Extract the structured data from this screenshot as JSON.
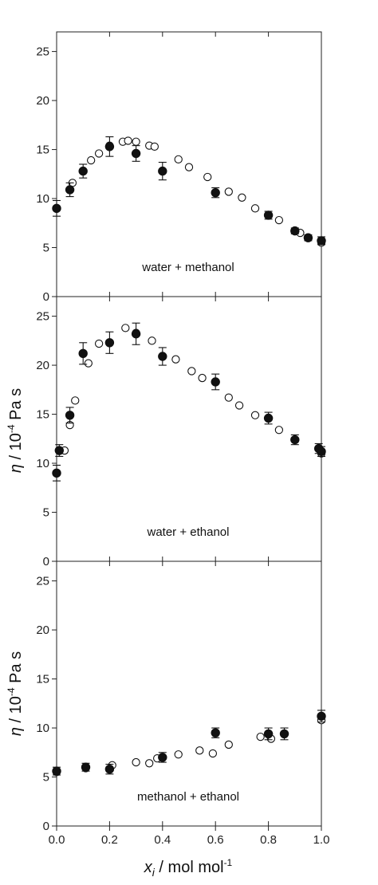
{
  "chart_data": [
    {
      "type": "scatter",
      "annotation": "water + methanol",
      "xlim": [
        0,
        1
      ],
      "ylim": [
        0,
        27
      ],
      "x_ticks": [
        "0.0",
        "0.2",
        "0.4",
        "0.6",
        "0.8",
        "1.0"
      ],
      "y_ticks": [
        "0",
        "5",
        "10",
        "15",
        "20",
        "25"
      ],
      "ylabel": "",
      "series": [
        {
          "marker": "filled-circle",
          "error_bars": true,
          "points": [
            {
              "x": 0.0,
              "y": 9.0,
              "err": 0.8
            },
            {
              "x": 0.05,
              "y": 10.9,
              "err": 0.7
            },
            {
              "x": 0.1,
              "y": 12.8,
              "err": 0.7
            },
            {
              "x": 0.2,
              "y": 15.3,
              "err": 1.0
            },
            {
              "x": 0.3,
              "y": 14.6,
              "err": 0.8
            },
            {
              "x": 0.4,
              "y": 12.8,
              "err": 0.9
            },
            {
              "x": 0.6,
              "y": 10.6,
              "err": 0.5
            },
            {
              "x": 0.8,
              "y": 8.3,
              "err": 0.4
            },
            {
              "x": 0.9,
              "y": 6.7,
              "err": 0.3
            },
            {
              "x": 0.95,
              "y": 6.0,
              "err": 0.3
            },
            {
              "x": 1.0,
              "y": 5.7,
              "err": 0.4
            }
          ]
        },
        {
          "marker": "open-circle",
          "error_bars": false,
          "points": [
            {
              "x": 0.0,
              "y": 9.0
            },
            {
              "x": 0.06,
              "y": 11.6
            },
            {
              "x": 0.1,
              "y": 12.8
            },
            {
              "x": 0.13,
              "y": 13.9
            },
            {
              "x": 0.16,
              "y": 14.6
            },
            {
              "x": 0.2,
              "y": 15.4
            },
            {
              "x": 0.25,
              "y": 15.8
            },
            {
              "x": 0.27,
              "y": 15.9
            },
            {
              "x": 0.3,
              "y": 15.8
            },
            {
              "x": 0.35,
              "y": 15.4
            },
            {
              "x": 0.37,
              "y": 15.3
            },
            {
              "x": 0.46,
              "y": 14.0
            },
            {
              "x": 0.5,
              "y": 13.2
            },
            {
              "x": 0.57,
              "y": 12.2
            },
            {
              "x": 0.65,
              "y": 10.7
            },
            {
              "x": 0.7,
              "y": 10.1
            },
            {
              "x": 0.75,
              "y": 9.0
            },
            {
              "x": 0.84,
              "y": 7.8
            },
            {
              "x": 0.9,
              "y": 6.7
            },
            {
              "x": 0.92,
              "y": 6.5
            },
            {
              "x": 1.0,
              "y": 5.5
            }
          ]
        }
      ]
    },
    {
      "type": "scatter",
      "annotation": "water + ethanol",
      "xlim": [
        0,
        1
      ],
      "ylim": [
        0,
        27
      ],
      "x_ticks": [
        "0.0",
        "0.2",
        "0.4",
        "0.6",
        "0.8",
        "1.0"
      ],
      "y_ticks": [
        "0",
        "5",
        "10",
        "15",
        "20",
        "25"
      ],
      "ylabel": "η / 10⁻⁴ Pa s",
      "series": [
        {
          "marker": "filled-circle",
          "error_bars": true,
          "points": [
            {
              "x": 0.0,
              "y": 9.0,
              "err": 0.8
            },
            {
              "x": 0.01,
              "y": 11.3,
              "err": 0.6
            },
            {
              "x": 0.05,
              "y": 14.9,
              "err": 0.8
            },
            {
              "x": 0.1,
              "y": 21.2,
              "err": 1.1
            },
            {
              "x": 0.2,
              "y": 22.3,
              "err": 1.1
            },
            {
              "x": 0.3,
              "y": 23.2,
              "err": 1.1
            },
            {
              "x": 0.4,
              "y": 20.9,
              "err": 0.9
            },
            {
              "x": 0.6,
              "y": 18.3,
              "err": 0.8
            },
            {
              "x": 0.8,
              "y": 14.6,
              "err": 0.6
            },
            {
              "x": 0.9,
              "y": 12.4,
              "err": 0.5
            },
            {
              "x": 0.99,
              "y": 11.5,
              "err": 0.5
            },
            {
              "x": 1.0,
              "y": 11.2,
              "err": 0.5
            }
          ]
        },
        {
          "marker": "open-circle",
          "error_bars": false,
          "points": [
            {
              "x": 0.03,
              "y": 11.3
            },
            {
              "x": 0.05,
              "y": 13.9
            },
            {
              "x": 0.07,
              "y": 16.4
            },
            {
              "x": 0.12,
              "y": 20.2
            },
            {
              "x": 0.16,
              "y": 22.2
            },
            {
              "x": 0.26,
              "y": 23.8
            },
            {
              "x": 0.3,
              "y": 23.3
            },
            {
              "x": 0.36,
              "y": 22.5
            },
            {
              "x": 0.45,
              "y": 20.6
            },
            {
              "x": 0.51,
              "y": 19.4
            },
            {
              "x": 0.55,
              "y": 18.7
            },
            {
              "x": 0.65,
              "y": 16.7
            },
            {
              "x": 0.69,
              "y": 15.9
            },
            {
              "x": 0.75,
              "y": 14.9
            },
            {
              "x": 0.84,
              "y": 13.4
            },
            {
              "x": 1.0,
              "y": 11.0
            }
          ]
        }
      ]
    },
    {
      "type": "scatter",
      "annotation": "methanol + ethanol",
      "xlim": [
        0,
        1
      ],
      "ylim": [
        0,
        27
      ],
      "x_ticks": [
        "0.0",
        "0.2",
        "0.4",
        "0.6",
        "0.8",
        "1.0"
      ],
      "y_ticks": [
        "0",
        "5",
        "10",
        "15",
        "20",
        "25"
      ],
      "ylabel": "η / 10⁻⁴ Pa s",
      "xlabel": "xᵢ / mol mol⁻¹",
      "series": [
        {
          "marker": "filled-circle",
          "error_bars": true,
          "points": [
            {
              "x": 0.0,
              "y": 5.6,
              "err": 0.4
            },
            {
              "x": 0.11,
              "y": 6.0,
              "err": 0.4
            },
            {
              "x": 0.2,
              "y": 5.8,
              "err": 0.5
            },
            {
              "x": 0.4,
              "y": 7.0,
              "err": 0.5
            },
            {
              "x": 0.6,
              "y": 9.5,
              "err": 0.5
            },
            {
              "x": 0.8,
              "y": 9.4,
              "err": 0.6
            },
            {
              "x": 0.86,
              "y": 9.4,
              "err": 0.6
            },
            {
              "x": 1.0,
              "y": 11.2,
              "err": 0.6
            }
          ]
        },
        {
          "marker": "open-circle",
          "error_bars": false,
          "points": [
            {
              "x": 0.0,
              "y": 5.5
            },
            {
              "x": 0.11,
              "y": 5.9
            },
            {
              "x": 0.21,
              "y": 6.2
            },
            {
              "x": 0.3,
              "y": 6.5
            },
            {
              "x": 0.35,
              "y": 6.4
            },
            {
              "x": 0.38,
              "y": 6.9
            },
            {
              "x": 0.46,
              "y": 7.3
            },
            {
              "x": 0.54,
              "y": 7.7
            },
            {
              "x": 0.59,
              "y": 7.4
            },
            {
              "x": 0.65,
              "y": 8.3
            },
            {
              "x": 0.77,
              "y": 9.1
            },
            {
              "x": 0.81,
              "y": 8.9
            },
            {
              "x": 1.0,
              "y": 10.8
            }
          ]
        }
      ]
    }
  ]
}
